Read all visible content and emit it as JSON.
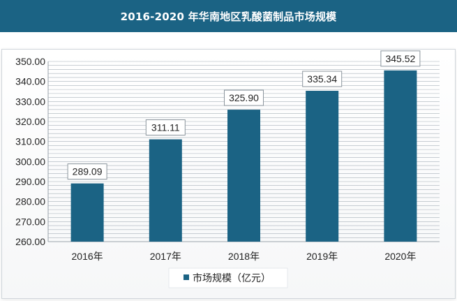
{
  "header": {
    "title": "2016-2020 年华南地区乳酸菌制品市场规模"
  },
  "colors": {
    "header_bg": "#1b6384",
    "bar": "#1b6384",
    "grid": "#8c98a3"
  },
  "chart_data": {
    "type": "bar",
    "title": "2016-2020 年华南地区乳酸菌制品市场规模",
    "categories": [
      "2016年",
      "2017年",
      "2018年",
      "2019年",
      "2020年"
    ],
    "series": [
      {
        "name": "市场规模（亿元）",
        "values": [
          289.09,
          311.11,
          325.9,
          335.34,
          345.52
        ]
      }
    ],
    "data_labels": [
      "289.09",
      "311.11",
      "325.90",
      "335.34",
      "345.52"
    ],
    "ylim": [
      260,
      350
    ],
    "yticks": [
      "260.00",
      "270.00",
      "280.00",
      "290.00",
      "300.00",
      "310.00",
      "320.00",
      "330.00",
      "340.00",
      "350.00"
    ],
    "grid": true,
    "legend_position": "bottom"
  }
}
